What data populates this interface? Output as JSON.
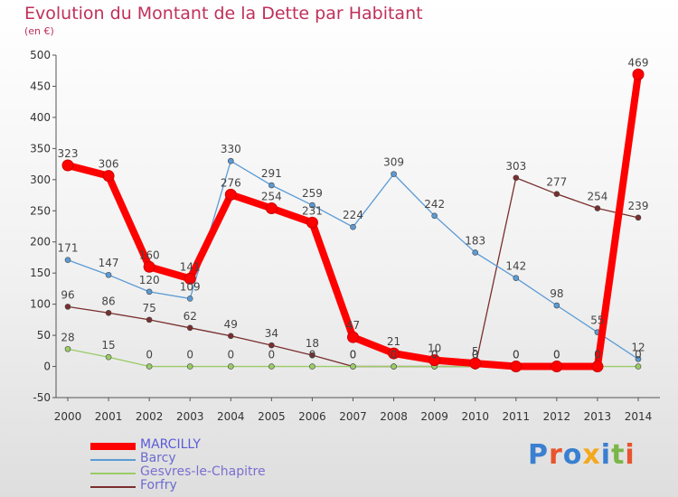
{
  "chart_data": {
    "type": "line",
    "title": "Evolution du Montant de la Dette par Habitant",
    "subtitle": "(en €)",
    "x": [
      "2000",
      "2001",
      "2002",
      "2003",
      "2004",
      "2005",
      "2006",
      "2007",
      "2008",
      "2009",
      "2010",
      "2011",
      "2012",
      "2013",
      "2014"
    ],
    "yticks": [
      "500",
      "450",
      "400",
      "350",
      "300",
      "250",
      "200",
      "150",
      "100",
      "50",
      "0",
      "-50"
    ],
    "ylim": [
      -50,
      500
    ],
    "legend_position": "bottom-left",
    "grid": false,
    "series": [
      {
        "name": "MARCILLY",
        "color": "#ff0000",
        "values": [
          323,
          306,
          160,
          141,
          276,
          254,
          231,
          47,
          21,
          10,
          5,
          0,
          0,
          0,
          469
        ],
        "labels": [
          "323",
          "306",
          "160",
          "141",
          "276",
          "254",
          "231",
          "47",
          "21",
          "10",
          "5",
          "0",
          "0",
          "0",
          "469"
        ]
      },
      {
        "name": "Barcy",
        "color": "#5b9bd5",
        "values": [
          171,
          147,
          120,
          109,
          330,
          291,
          259,
          224,
          309,
          242,
          183,
          142,
          98,
          55,
          12
        ],
        "labels": [
          "171",
          "147",
          "120",
          "109",
          "330",
          "291",
          "259",
          "224",
          "309",
          "242",
          "183",
          "142",
          "98",
          "55",
          "12"
        ]
      },
      {
        "name": "Gesvres-le-Chapitre",
        "color": "#99cc66",
        "values": [
          28,
          15,
          0,
          0,
          0,
          0,
          0,
          0,
          0,
          0,
          0,
          0,
          0,
          0,
          0
        ],
        "labels": [
          "28",
          "15",
          "0",
          "0",
          "0",
          "0",
          "0",
          "0",
          "0",
          "0",
          "0",
          "0",
          "0",
          "0",
          "0"
        ]
      },
      {
        "name": "Forfry",
        "color": "#7a2e2e",
        "values": [
          96,
          86,
          75,
          62,
          49,
          34,
          18,
          0,
          0,
          0,
          0,
          303,
          277,
          254,
          239
        ],
        "labels": [
          "96",
          "86",
          "75",
          "62",
          "49",
          "34",
          "18",
          "0",
          "0",
          "0",
          "0",
          "303",
          "277",
          "254",
          "239"
        ]
      }
    ]
  },
  "logo": {
    "text": "Proxiti"
  }
}
